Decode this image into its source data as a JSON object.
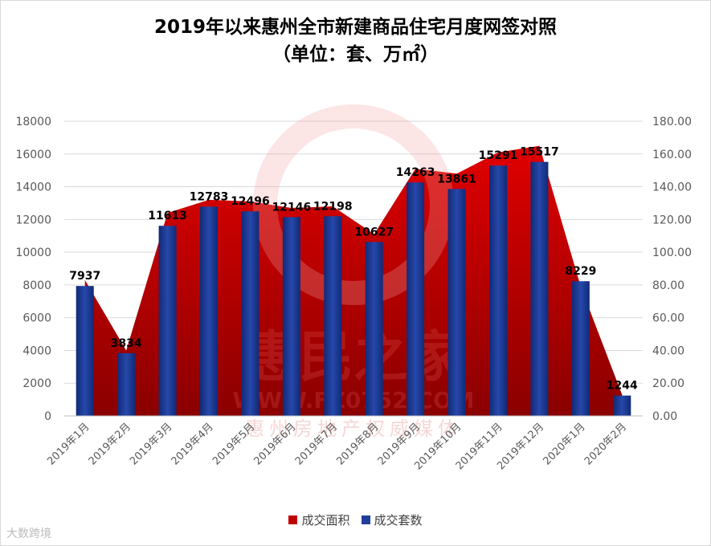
{
  "title_line1": "2019年以来惠州全市新建商品住宅月度网签对照",
  "title_line2": "（单位：套、万㎡）",
  "watermark": {
    "main": "惠民之家",
    "url": "WWW.FZ0752.COM",
    "tagline": "惠州房地产权威媒体",
    "corner": "大数跨境"
  },
  "colors": {
    "area": "#c00000",
    "bars": "#203f9a",
    "label": "#000000"
  },
  "chart_data": {
    "type": "bar",
    "categories": [
      "2019年1月",
      "2019年2月",
      "2019年3月",
      "2019年4月",
      "2019年5月",
      "2019年6月",
      "2019年7月",
      "2019年8月",
      "2019年9月",
      "2019年10月",
      "2019年11月",
      "2019年12月",
      "2020年1月",
      "2020年2月"
    ],
    "series": [
      {
        "name": "成交面积",
        "type": "area",
        "axis": "right",
        "values": [
          83,
          40,
          124,
          132,
          131,
          127,
          128,
          111,
          151,
          148,
          161,
          165,
          79,
          13
        ]
      },
      {
        "name": "成交套数",
        "type": "bar",
        "axis": "left",
        "values": [
          7937,
          3834,
          11613,
          12783,
          12496,
          12146,
          12198,
          10627,
          14263,
          13861,
          15291,
          15517,
          8229,
          1244
        ]
      }
    ],
    "y_left": {
      "min": 0,
      "max": 18000,
      "ticks": [
        "0",
        "2000",
        "4000",
        "6000",
        "8000",
        "10000",
        "12000",
        "14000",
        "16000",
        "18000"
      ]
    },
    "y_right": {
      "min": 0,
      "max": 180,
      "ticks": [
        "0.00",
        "20.00",
        "40.00",
        "60.00",
        "80.00",
        "100.00",
        "120.00",
        "140.00",
        "160.00",
        "180.00"
      ]
    },
    "data_labels": [
      "7937",
      "3834",
      "11613",
      "12783",
      "12496",
      "12146",
      "12198",
      "10627",
      "14263",
      "13861",
      "15291",
      "15517",
      "8229",
      "1244"
    ],
    "grid": true,
    "legend": "bottom"
  }
}
